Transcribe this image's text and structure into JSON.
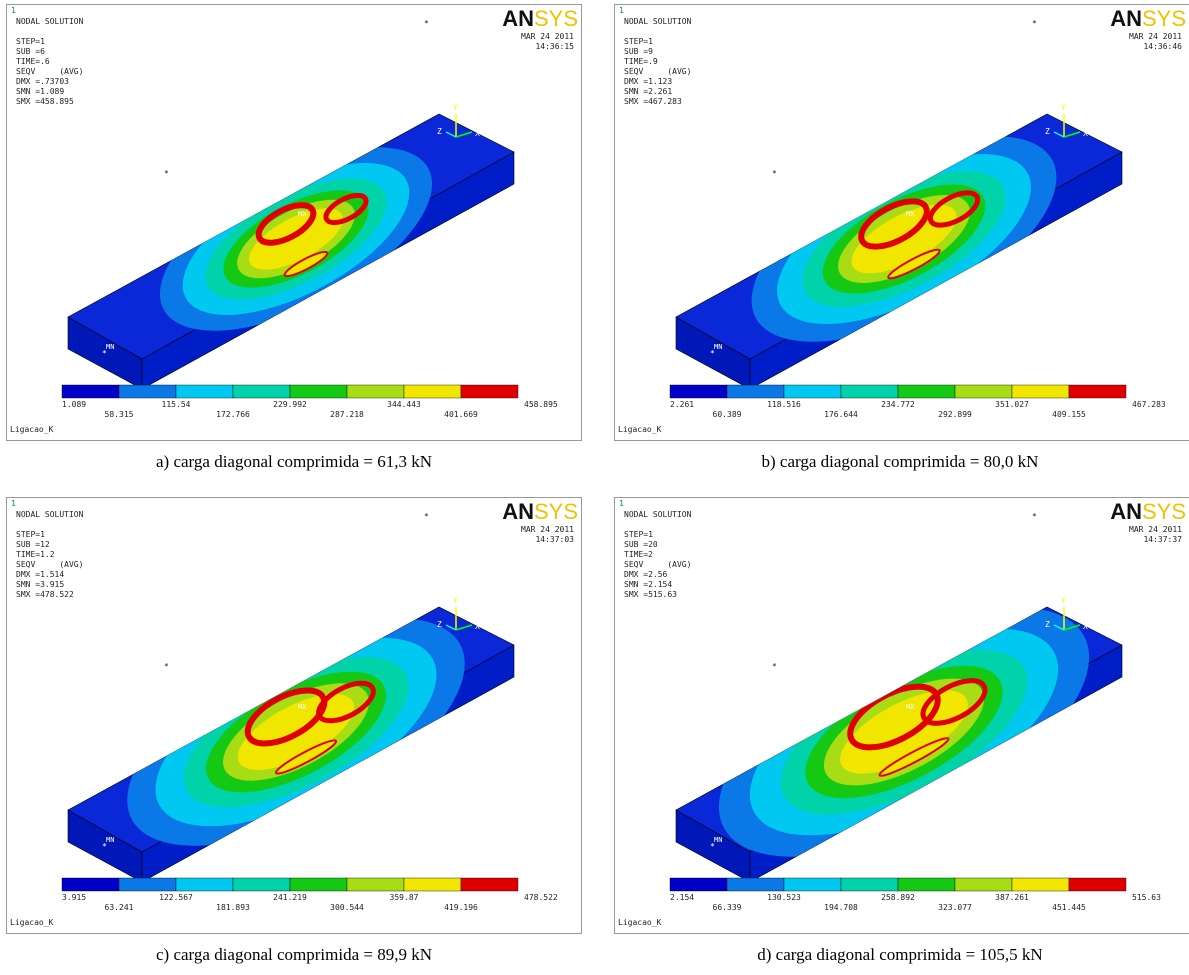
{
  "panels": [
    {
      "window_number": "1",
      "title": "NODAL SOLUTION",
      "info": [
        "STEP=1",
        "SUB =6",
        "TIME=.6",
        "SEQV     (AVG)",
        "DMX =.73703",
        "SMN =1.089",
        "SMX =458.895"
      ],
      "date": "MAR 24 2011",
      "time": "14:36:15",
      "logo": [
        "AN",
        "SYS"
      ],
      "mx": "MX",
      "mn": "MN",
      "axes": [
        "Y",
        "Z",
        "X"
      ],
      "legend": [
        "1.089",
        "58.315",
        "115.54",
        "172.766",
        "229.992",
        "287.218",
        "344.443",
        "401.669",
        "458.895"
      ],
      "jobname": "Ligacao_K",
      "caption": "a) carga diagonal comprimida = 61,3 kN"
    },
    {
      "window_number": "1",
      "title": "NODAL SOLUTION",
      "info": [
        "STEP=1",
        "SUB =9",
        "TIME=.9",
        "SEQV     (AVG)",
        "DMX =1.123",
        "SMN =2.261",
        "SMX =467.283"
      ],
      "date": "MAR 24 2011",
      "time": "14:36:46",
      "logo": [
        "AN",
        "SYS"
      ],
      "mx": "MX",
      "mn": "MN",
      "axes": [
        "Y",
        "Z",
        "X"
      ],
      "legend": [
        "2.261",
        "60.389",
        "118.516",
        "176.644",
        "234.772",
        "292.899",
        "351.027",
        "409.155",
        "467.283"
      ],
      "jobname": "Ligacao_K",
      "caption": "b) carga diagonal comprimida = 80,0 kN"
    },
    {
      "window_number": "1",
      "title": "NODAL SOLUTION",
      "info": [
        "STEP=1",
        "SUB =12",
        "TIME=1.2",
        "SEQV     (AVG)",
        "DMX =1.514",
        "SMN =3.915",
        "SMX =478.522"
      ],
      "date": "MAR 24 2011",
      "time": "14:37:03",
      "logo": [
        "AN",
        "SYS"
      ],
      "mx": "MX",
      "mn": "MN",
      "axes": [
        "Y",
        "Z",
        "X"
      ],
      "legend": [
        "3.915",
        "63.241",
        "122.567",
        "181.893",
        "241.219",
        "300.544",
        "359.87",
        "419.196",
        "478.522"
      ],
      "jobname": "Ligacao_K",
      "caption": "c) carga diagonal comprimida = 89,9 kN"
    },
    {
      "window_number": "1",
      "title": "NODAL SOLUTION",
      "info": [
        "STEP=1",
        "SUB =20",
        "TIME=2",
        "SEQV     (AVG)",
        "DMX =2.56",
        "SMN =2.154",
        "SMX =515.63"
      ],
      "date": "MAR 24 2011",
      "time": "14:37:37",
      "logo": [
        "AN",
        "SYS"
      ],
      "mx": "MX",
      "mn": "MN",
      "axes": [
        "Y",
        "Z",
        "X"
      ],
      "legend": [
        "2.154",
        "66.339",
        "130.523",
        "194.708",
        "258.892",
        "323.077",
        "387.261",
        "451.445",
        "515.63"
      ],
      "jobname": "Ligacao_K",
      "caption": "d) carga diagonal comprimida = 105,5 kN"
    }
  ]
}
